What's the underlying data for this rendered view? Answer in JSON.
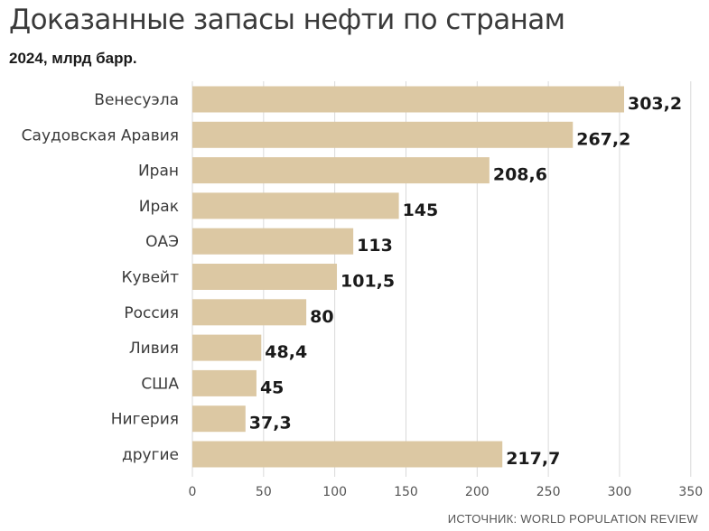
{
  "chart_data": {
    "type": "bar",
    "orientation": "horizontal",
    "title": "Доказанные запасы нефти по странам",
    "subtitle": "2024, млрд барр.",
    "categories": [
      "Венесуэла",
      "Саудовская Аравия",
      "Иран",
      "Ирак",
      "ОАЭ",
      "Кувейт",
      "Россия",
      "Ливия",
      "США",
      "Нигерия",
      "другие"
    ],
    "values": [
      303.2,
      267.2,
      208.6,
      145,
      113,
      101.5,
      80,
      48.4,
      45,
      37.3,
      217.7
    ],
    "value_labels": [
      "303,2",
      "267,2",
      "208,6",
      "145",
      "113",
      "101,5",
      "80",
      "48,4",
      "45",
      "37,3",
      "217,7"
    ],
    "xlim": [
      0,
      350
    ],
    "x_ticks": [
      0,
      50,
      100,
      150,
      200,
      250,
      300,
      350
    ],
    "grid": true,
    "bar_color": "#dcc8a3",
    "grid_color": "#d9d9d9",
    "source": "ИСТОЧНИК: WORLD POPULATION REVIEW"
  }
}
